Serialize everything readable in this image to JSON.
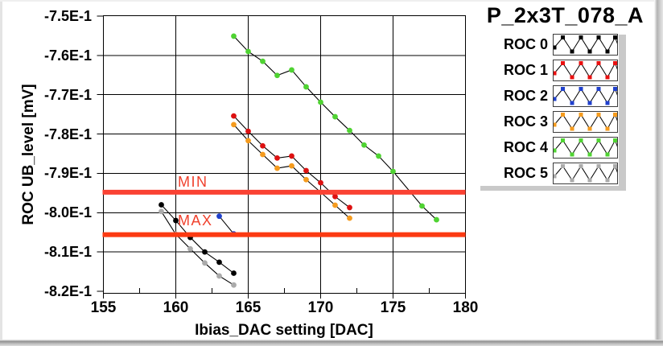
{
  "window": {
    "kind": "labview-graph-panel"
  },
  "chart_data": {
    "type": "line",
    "title": "P_2x3T_078_A",
    "xlabel": "Ibias_DAC setting [DAC]",
    "ylabel": "ROC UB_level [mV]",
    "xlim": [
      155,
      180
    ],
    "ylim": [
      -0.8206,
      -0.75
    ],
    "grid": true,
    "legend_position": "right",
    "x_ticks": [
      155,
      160,
      165,
      170,
      175,
      180
    ],
    "x_tick_labels": [
      "155",
      "160",
      "165",
      "170",
      "175",
      "180"
    ],
    "y_ticks": [
      -0.75,
      -0.76,
      -0.77,
      -0.78,
      -0.79,
      -0.8,
      -0.81,
      -0.82
    ],
    "y_tick_labels": [
      "-7.5E-1",
      "-7.6E-1",
      "-7.7E-1",
      "-7.8E-1",
      "-7.9E-1",
      "-8.0E-1",
      "-8.1E-1",
      "-8.2E-1"
    ],
    "reference_lines": [
      {
        "name": "MIN",
        "label": "MIN",
        "value": -0.7948,
        "color": "#fa4233",
        "label_color": "#f0402c"
      },
      {
        "name": "MAX",
        "label": "MAX",
        "value": -0.8056,
        "color": "#fc3a12",
        "label_color": "#f0402c"
      }
    ],
    "series": [
      {
        "name": "ROC 0",
        "color": "#000000",
        "line_color": "#000000",
        "points": [
          [
            159,
            -0.798
          ],
          [
            160,
            -0.802
          ],
          [
            161,
            -0.8063
          ],
          [
            162,
            -0.81
          ],
          [
            163,
            -0.8126
          ],
          [
            164,
            -0.8154
          ]
        ]
      },
      {
        "name": "ROC 1",
        "color": "#dd1111",
        "line_color": "#000000",
        "points": [
          [
            164,
            -0.7754
          ],
          [
            165,
            -0.7793
          ],
          [
            166,
            -0.783
          ],
          [
            167,
            -0.7861
          ],
          [
            168,
            -0.7856
          ],
          [
            169,
            -0.7893
          ],
          [
            170,
            -0.7924
          ],
          [
            171,
            -0.7959
          ],
          [
            172,
            -0.7987
          ]
        ]
      },
      {
        "name": "ROC 2",
        "color": "#2040cc",
        "line_color": "#000000",
        "points": [
          [
            163,
            -0.8009
          ],
          [
            164,
            -0.8054
          ]
        ]
      },
      {
        "name": "ROC 3",
        "color": "#f59b1e",
        "line_color": "#000000",
        "points": [
          [
            164,
            -0.7776
          ],
          [
            165,
            -0.7817
          ],
          [
            166,
            -0.7852
          ],
          [
            167,
            -0.7887
          ],
          [
            168,
            -0.7881
          ],
          [
            169,
            -0.7916
          ],
          [
            170,
            -0.7948
          ],
          [
            171,
            -0.7981
          ],
          [
            172,
            -0.8014
          ]
        ]
      },
      {
        "name": "ROC 4",
        "color": "#4fd332",
        "line_color": "#000000",
        "points": [
          [
            164,
            -0.7551
          ],
          [
            165,
            -0.759
          ],
          [
            166,
            -0.7615
          ],
          [
            167,
            -0.7651
          ],
          [
            168,
            -0.7637
          ],
          [
            169,
            -0.768
          ],
          [
            170,
            -0.7719
          ],
          [
            171,
            -0.7756
          ],
          [
            172,
            -0.7791
          ],
          [
            173,
            -0.7828
          ],
          [
            174,
            -0.7856
          ],
          [
            175,
            -0.7895
          ],
          [
            177,
            -0.7983
          ],
          [
            178,
            -0.8018
          ]
        ]
      },
      {
        "name": "ROC 5",
        "color": "#ababab",
        "line_color": "#000000",
        "points": [
          [
            159,
            -0.7997
          ],
          [
            160,
            -0.8055
          ],
          [
            161,
            -0.8092
          ],
          [
            162,
            -0.8128
          ],
          [
            163,
            -0.8161
          ],
          [
            164,
            -0.8184
          ]
        ]
      }
    ]
  },
  "legend": {
    "items": [
      {
        "label": "ROC 0",
        "color": "#000000"
      },
      {
        "label": "ROC 1",
        "color": "#e81010"
      },
      {
        "label": "ROC 2",
        "color": "#2040cc"
      },
      {
        "label": "ROC 3",
        "color": "#f59b1e"
      },
      {
        "label": "ROC 4",
        "color": "#4fd332"
      },
      {
        "label": "ROC 5",
        "color": "#ababab"
      }
    ]
  }
}
